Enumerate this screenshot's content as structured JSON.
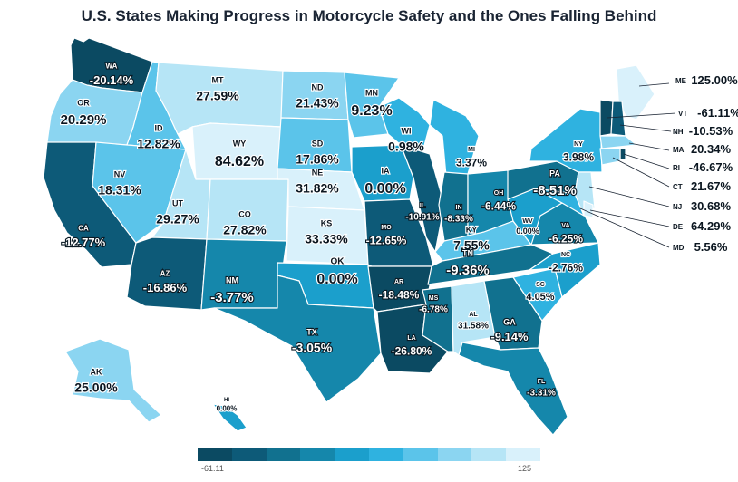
{
  "title": "U.S. States Making Progress in Motorcycle Safety and the Ones Falling Behind",
  "legend": {
    "min": "-61.11",
    "max": "125",
    "colors": [
      "#0b4a62",
      "#0d5a78",
      "#11718f",
      "#1587ab",
      "#1b9fcc",
      "#2fb2e0",
      "#5bc4ea",
      "#8bd5f1",
      "#b6e5f6",
      "#d9f1fb"
    ]
  },
  "chart_data": {
    "type": "choropleth",
    "metric": "percent change",
    "scale": {
      "min": -61.11,
      "max": 125
    },
    "states": [
      {
        "abbr": "WA",
        "value": "-20.14%",
        "v": -20.14
      },
      {
        "abbr": "OR",
        "value": "20.29%",
        "v": 20.29
      },
      {
        "abbr": "CA",
        "value": "-12.77%",
        "v": -12.77
      },
      {
        "abbr": "ID",
        "value": "12.82%",
        "v": 12.82
      },
      {
        "abbr": "NV",
        "value": "18.31%",
        "v": 18.31
      },
      {
        "abbr": "MT",
        "value": "27.59%",
        "v": 27.59
      },
      {
        "abbr": "WY",
        "value": "84.62%",
        "v": 84.62
      },
      {
        "abbr": "UT",
        "value": "29.27%",
        "v": 29.27
      },
      {
        "abbr": "CO",
        "value": "27.82%",
        "v": 27.82
      },
      {
        "abbr": "AZ",
        "value": "-16.86%",
        "v": -16.86
      },
      {
        "abbr": "NM",
        "value": "-3.77%",
        "v": -3.77
      },
      {
        "abbr": "ND",
        "value": "21.43%",
        "v": 21.43
      },
      {
        "abbr": "SD",
        "value": "17.86%",
        "v": 17.86
      },
      {
        "abbr": "NE",
        "value": "31.82%",
        "v": 31.82
      },
      {
        "abbr": "KS",
        "value": "33.33%",
        "v": 33.33
      },
      {
        "abbr": "OK",
        "value": "0.00%",
        "v": 0.0
      },
      {
        "abbr": "TX",
        "value": "-3.05%",
        "v": -3.05
      },
      {
        "abbr": "MN",
        "value": "9.23%",
        "v": 9.23
      },
      {
        "abbr": "IA",
        "value": "0.00%",
        "v": 0.0
      },
      {
        "abbr": "MO",
        "value": "-12.65%",
        "v": -12.65
      },
      {
        "abbr": "AR",
        "value": "-18.48%",
        "v": -18.48
      },
      {
        "abbr": "LA",
        "value": "-26.80%",
        "v": -26.8
      },
      {
        "abbr": "WI",
        "value": "0.98%",
        "v": 0.98
      },
      {
        "abbr": "IL",
        "value": "-10.91%",
        "v": -10.91
      },
      {
        "abbr": "MI",
        "value": "3.37%",
        "v": 3.37
      },
      {
        "abbr": "IN",
        "value": "-8.33%",
        "v": -8.33
      },
      {
        "abbr": "OH",
        "value": "-6.44%",
        "v": -6.44
      },
      {
        "abbr": "KY",
        "value": "7.55%",
        "v": 7.55
      },
      {
        "abbr": "TN",
        "value": "-9.36%",
        "v": -9.36
      },
      {
        "abbr": "MS",
        "value": "-6.78%",
        "v": -6.78
      },
      {
        "abbr": "AL",
        "value": "31.58%",
        "v": 31.58
      },
      {
        "abbr": "GA",
        "value": "-9.14%",
        "v": -9.14
      },
      {
        "abbr": "FL",
        "value": "-3.31%",
        "v": -3.31
      },
      {
        "abbr": "SC",
        "value": "4.05%",
        "v": 4.05
      },
      {
        "abbr": "NC",
        "value": "-2.76%",
        "v": -2.76
      },
      {
        "abbr": "VA",
        "value": "-6.25%",
        "v": -6.25
      },
      {
        "abbr": "WV",
        "value": "0.00%",
        "v": 0.0
      },
      {
        "abbr": "PA",
        "value": "-8.51%",
        "v": -8.51
      },
      {
        "abbr": "NY",
        "value": "3.98%",
        "v": 3.98
      },
      {
        "abbr": "AK",
        "value": "25.00%",
        "v": 25.0
      },
      {
        "abbr": "HI",
        "value": "0.00%",
        "v": 0.0
      },
      {
        "abbr": "ME",
        "value": "125.00%",
        "v": 125.0
      },
      {
        "abbr": "VT",
        "value": "-61.11%",
        "v": -61.11
      },
      {
        "abbr": "NH",
        "value": "-10.53%",
        "v": -10.53
      },
      {
        "abbr": "MA",
        "value": "20.34%",
        "v": 20.34
      },
      {
        "abbr": "RI",
        "value": "-46.67%",
        "v": -46.67
      },
      {
        "abbr": "CT",
        "value": "21.67%",
        "v": 21.67
      },
      {
        "abbr": "NJ",
        "value": "30.68%",
        "v": 30.68
      },
      {
        "abbr": "DE",
        "value": "64.29%",
        "v": 64.29
      },
      {
        "abbr": "MD",
        "value": "5.56%",
        "v": 5.56
      }
    ]
  }
}
